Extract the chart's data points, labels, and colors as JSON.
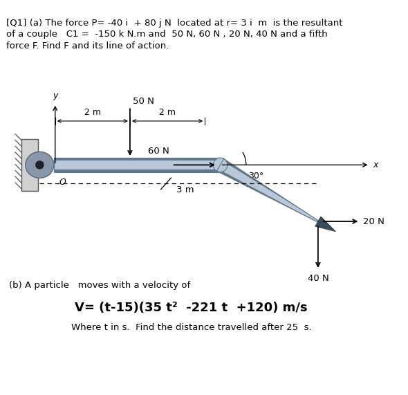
{
  "title_line1": "[Q1] (a) The force P= -40 i  + 80 j N  located at r= 3 i  m  is the resultant",
  "title_line2": "of a couple   C1 =  -150 k N.m and  50 N, 60 N , 20 N, 40 N and a fifth",
  "title_line3": "force F. Find F and its line of action.",
  "part_b_line1": "(b) A particle   moves with a velocity of",
  "part_b_eq": "V= (t-15)(35 t²  -221 t  +120) m/s",
  "part_b_line3": "Where t in s.  Find the distance travelled after 25  s.",
  "bg_color": "#ffffff",
  "text_color": "#000000",
  "label_50N": "50 N",
  "label_60N": "60 N",
  "label_20N": "20 N",
  "label_40N": "40 N",
  "label_3m": "3 m",
  "label_2m_left": "2 m",
  "label_2m_right": "2 m",
  "label_30deg": "30°",
  "label_x": "x",
  "label_y": "y",
  "label_O": "O",
  "beam_col_light": "#b8c8d8",
  "beam_col_mid": "#90a8be",
  "beam_col_dark": "#607888",
  "wall_col": "#b0b0b0"
}
